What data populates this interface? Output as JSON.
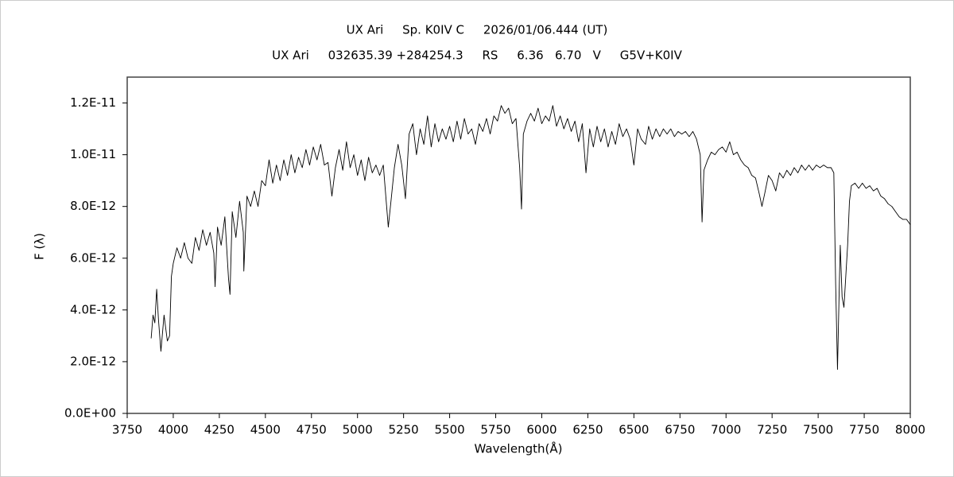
{
  "chart_data": {
    "type": "line",
    "title": "UX Ari     Sp. K0IV C     2026/01/06.444 (UT)",
    "subtitle": "UX Ari     032635.39 +284254.3     RS     6.36   6.70   V     G5V+K0IV",
    "xlabel": "Wavelength(Å)",
    "ylabel": "F (λ)",
    "color": "#000000",
    "xlim": [
      3750,
      8000
    ],
    "xticks": [
      3750,
      4000,
      4250,
      4500,
      4750,
      5000,
      5250,
      5500,
      5750,
      6000,
      6250,
      6500,
      6750,
      7000,
      7250,
      7500,
      7750,
      8000
    ],
    "ylim": [
      0,
      1.3e-11
    ],
    "yticks": [
      {
        "value": 0,
        "label": "0.0E+00"
      },
      {
        "value": 2e-12,
        "label": "2.0E-12"
      },
      {
        "value": 4e-12,
        "label": "4.0E-12"
      },
      {
        "value": 6e-12,
        "label": "6.0E-12"
      },
      {
        "value": 8e-12,
        "label": "8.0E-12"
      },
      {
        "value": 1e-11,
        "label": "1.0E-11"
      },
      {
        "value": 1.2e-11,
        "label": "1.2E-11"
      }
    ],
    "x": [
      3880,
      3890,
      3900,
      3910,
      3920,
      3933,
      3950,
      3968,
      3980,
      3990,
      4000,
      4020,
      4040,
      4060,
      4080,
      4101,
      4120,
      4140,
      4160,
      4180,
      4200,
      4220,
      4227,
      4240,
      4260,
      4280,
      4300,
      4308,
      4320,
      4340,
      4360,
      4380,
      4383,
      4400,
      4420,
      4440,
      4460,
      4480,
      4500,
      4520,
      4540,
      4560,
      4580,
      4600,
      4620,
      4640,
      4660,
      4680,
      4700,
      4720,
      4740,
      4760,
      4780,
      4800,
      4820,
      4840,
      4861,
      4880,
      4900,
      4920,
      4940,
      4960,
      4980,
      5000,
      5020,
      5040,
      5060,
      5080,
      5100,
      5120,
      5140,
      5167,
      5183,
      5200,
      5220,
      5240,
      5260,
      5280,
      5300,
      5320,
      5340,
      5360,
      5380,
      5400,
      5420,
      5440,
      5460,
      5480,
      5500,
      5520,
      5540,
      5560,
      5580,
      5600,
      5620,
      5640,
      5660,
      5680,
      5700,
      5720,
      5740,
      5760,
      5780,
      5800,
      5820,
      5840,
      5860,
      5880,
      5890,
      5900,
      5920,
      5940,
      5960,
      5980,
      6000,
      6020,
      6040,
      6060,
      6080,
      6100,
      6120,
      6140,
      6160,
      6180,
      6200,
      6220,
      6240,
      6260,
      6280,
      6300,
      6320,
      6340,
      6360,
      6380,
      6400,
      6420,
      6440,
      6460,
      6480,
      6500,
      6520,
      6540,
      6563,
      6580,
      6600,
      6620,
      6640,
      6660,
      6680,
      6700,
      6720,
      6740,
      6760,
      6780,
      6800,
      6820,
      6840,
      6860,
      6870,
      6880,
      6900,
      6920,
      6940,
      6960,
      6980,
      7000,
      7020,
      7040,
      7060,
      7080,
      7100,
      7120,
      7140,
      7160,
      7180,
      7195,
      7210,
      7230,
      7250,
      7270,
      7290,
      7310,
      7330,
      7350,
      7370,
      7390,
      7410,
      7430,
      7450,
      7470,
      7490,
      7510,
      7530,
      7550,
      7570,
      7585,
      7595,
      7605,
      7615,
      7620,
      7630,
      7640,
      7660,
      7670,
      7680,
      7700,
      7720,
      7740,
      7760,
      7780,
      7800,
      7820,
      7840,
      7860,
      7880,
      7900,
      7920,
      7940,
      7960,
      7980,
      8000
    ],
    "values": [
      2.9e-12,
      3.8e-12,
      3.5e-12,
      4.8e-12,
      3.6e-12,
      2.4e-12,
      3.8e-12,
      2.8e-12,
      3e-12,
      5.3e-12,
      5.8e-12,
      6.4e-12,
      6e-12,
      6.6e-12,
      6e-12,
      5.8e-12,
      6.8e-12,
      6.3e-12,
      7.1e-12,
      6.5e-12,
      7e-12,
      6.2e-12,
      4.9e-12,
      7.2e-12,
      6.5e-12,
      7.6e-12,
      5.2e-12,
      4.6e-12,
      7.8e-12,
      6.8e-12,
      8.2e-12,
      7e-12,
      5.5e-12,
      8.4e-12,
      8e-12,
      8.6e-12,
      8e-12,
      9e-12,
      8.8e-12,
      9.8e-12,
      8.9e-12,
      9.6e-12,
      9e-12,
      9.8e-12,
      9.2e-12,
      1e-11,
      9.3e-12,
      9.9e-12,
      9.5e-12,
      1.02e-11,
      9.6e-12,
      1.03e-11,
      9.8e-12,
      1.04e-11,
      9.6e-12,
      9.7e-12,
      8.4e-12,
      9.5e-12,
      1.02e-11,
      9.4e-12,
      1.05e-11,
      9.5e-12,
      1e-11,
      9.2e-12,
      9.8e-12,
      9e-12,
      9.9e-12,
      9.3e-12,
      9.6e-12,
      9.2e-12,
      9.6e-12,
      7.2e-12,
      8.3e-12,
      9.5e-12,
      1.04e-11,
      9.6e-12,
      8.3e-12,
      1.08e-11,
      1.12e-11,
      1e-11,
      1.1e-11,
      1.04e-11,
      1.15e-11,
      1.03e-11,
      1.12e-11,
      1.05e-11,
      1.1e-11,
      1.06e-11,
      1.11e-11,
      1.05e-11,
      1.13e-11,
      1.06e-11,
      1.14e-11,
      1.08e-11,
      1.1e-11,
      1.04e-11,
      1.12e-11,
      1.09e-11,
      1.14e-11,
      1.08e-11,
      1.15e-11,
      1.13e-11,
      1.19e-11,
      1.16e-11,
      1.18e-11,
      1.12e-11,
      1.14e-11,
      9.5e-12,
      7.9e-12,
      1.08e-11,
      1.13e-11,
      1.16e-11,
      1.13e-11,
      1.18e-11,
      1.12e-11,
      1.15e-11,
      1.13e-11,
      1.19e-11,
      1.11e-11,
      1.15e-11,
      1.1e-11,
      1.14e-11,
      1.09e-11,
      1.13e-11,
      1.05e-11,
      1.12e-11,
      9.3e-12,
      1.1e-11,
      1.03e-11,
      1.11e-11,
      1.05e-11,
      1.1e-11,
      1.03e-11,
      1.09e-11,
      1.04e-11,
      1.12e-11,
      1.07e-11,
      1.1e-11,
      1.06e-11,
      9.6e-12,
      1.1e-11,
      1.06e-11,
      1.04e-11,
      1.11e-11,
      1.06e-11,
      1.1e-11,
      1.07e-11,
      1.1e-11,
      1.08e-11,
      1.1e-11,
      1.07e-11,
      1.09e-11,
      1.08e-11,
      1.09e-11,
      1.07e-11,
      1.09e-11,
      1.06e-11,
      1e-11,
      7.4e-12,
      9.4e-12,
      9.8e-12,
      1.01e-11,
      1e-11,
      1.02e-11,
      1.03e-11,
      1.01e-11,
      1.05e-11,
      1e-11,
      1.01e-11,
      9.8e-12,
      9.6e-12,
      9.5e-12,
      9.2e-12,
      9.1e-12,
      8.5e-12,
      8e-12,
      8.5e-12,
      9.2e-12,
      9e-12,
      8.6e-12,
      9.3e-12,
      9.1e-12,
      9.4e-12,
      9.2e-12,
      9.5e-12,
      9.3e-12,
      9.6e-12,
      9.4e-12,
      9.6e-12,
      9.4e-12,
      9.6e-12,
      9.5e-12,
      9.6e-12,
      9.5e-12,
      9.5e-12,
      9.3e-12,
      5e-12,
      1.7e-12,
      5e-12,
      6.5e-12,
      4.5e-12,
      4.1e-12,
      6.5e-12,
      8.2e-12,
      8.8e-12,
      8.9e-12,
      8.7e-12,
      8.9e-12,
      8.7e-12,
      8.8e-12,
      8.6e-12,
      8.7e-12,
      8.4e-12,
      8.3e-12,
      8.1e-12,
      8e-12,
      7.8e-12,
      7.6e-12,
      7.5e-12,
      7.5e-12,
      7.3e-12
    ]
  }
}
